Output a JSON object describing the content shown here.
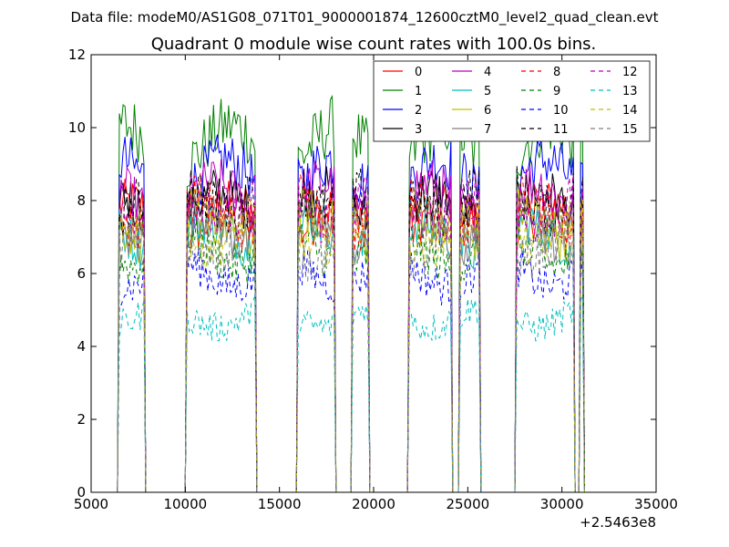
{
  "figure": {
    "suptitle": "Data file: modeM0/AS1G08_071T01_9000001874_12600cztM0_level2_quad_clean.evt"
  },
  "chart_data": {
    "type": "line",
    "title": "Quadrant 0 module wise count rates with 100.0s bins.",
    "xlabel": "",
    "ylabel": "",
    "x_offset_label": "+2.5463e8",
    "xlim": [
      5000,
      35000
    ],
    "ylim": [
      0,
      12
    ],
    "xticks": [
      5000,
      10000,
      15000,
      20000,
      25000,
      30000,
      35000
    ],
    "yticks": [
      0,
      2,
      4,
      6,
      8,
      10,
      12
    ],
    "grid": false,
    "legend": {
      "placement": "top-right",
      "columns": 4
    },
    "x_units_note": "seconds relative to offset",
    "segments": [
      {
        "start": 6400,
        "end": 7900
      },
      {
        "start": 10000,
        "end": 13800
      },
      {
        "start": 15900,
        "end": 18000
      },
      {
        "start": 18800,
        "end": 19800
      },
      {
        "start": 21800,
        "end": 24200
      },
      {
        "start": 24500,
        "end": 25700
      },
      {
        "start": 27500,
        "end": 30700
      },
      {
        "start": 30900,
        "end": 31200
      }
    ],
    "series": [
      {
        "name": "0",
        "color": "#ff0000",
        "dash": "solid",
        "level": 7.5
      },
      {
        "name": "1",
        "color": "#008000",
        "dash": "solid",
        "level": 9.5
      },
      {
        "name": "2",
        "color": "#0000ff",
        "dash": "solid",
        "level": 8.6
      },
      {
        "name": "3",
        "color": "#000000",
        "dash": "solid",
        "level": 7.8
      },
      {
        "name": "4",
        "color": "#bf00bf",
        "dash": "solid",
        "level": 8.0
      },
      {
        "name": "5",
        "color": "#00bfbf",
        "dash": "solid",
        "level": 7.0
      },
      {
        "name": "6",
        "color": "#bfbf00",
        "dash": "solid",
        "level": 7.3
      },
      {
        "name": "7",
        "color": "#808080",
        "dash": "solid",
        "level": 7.2
      },
      {
        "name": "8",
        "color": "#ff0000",
        "dash": "dashed",
        "level": 7.7
      },
      {
        "name": "9",
        "color": "#008000",
        "dash": "dashed",
        "level": 6.6
      },
      {
        "name": "10",
        "color": "#0000ff",
        "dash": "dashed",
        "level": 6.0
      },
      {
        "name": "11",
        "color": "#000000",
        "dash": "dashed",
        "level": 8.2
      },
      {
        "name": "12",
        "color": "#bf00bf",
        "dash": "dashed",
        "level": 7.9
      },
      {
        "name": "13",
        "color": "#00bfbf",
        "dash": "dashed",
        "level": 4.8
      },
      {
        "name": "14",
        "color": "#bfbf00",
        "dash": "dashed",
        "level": 7.2
      },
      {
        "name": "15",
        "color": "#808080",
        "dash": "dashed",
        "level": 6.8
      }
    ]
  }
}
